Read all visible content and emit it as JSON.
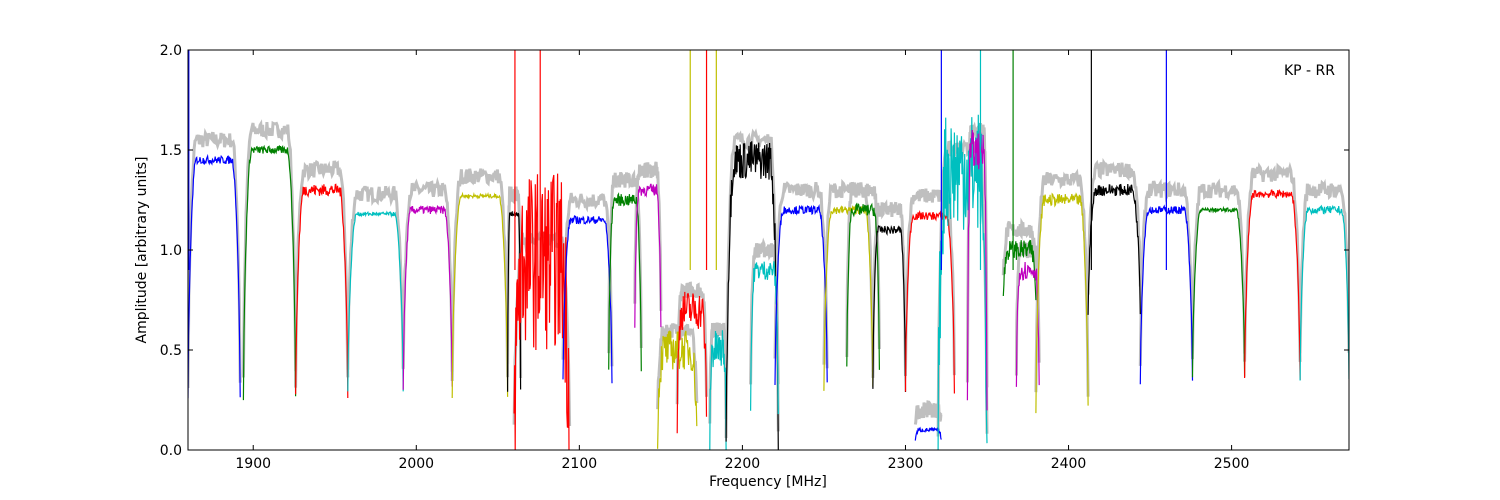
{
  "chart_data": {
    "type": "line",
    "title": "",
    "xlabel": "Frequency [MHz]",
    "ylabel": "Amplitude [arbitrary units]",
    "annotation": "KP - RR",
    "xlim": [
      1860,
      2572
    ],
    "ylim": [
      0.0,
      2.0
    ],
    "xticks": [
      1900,
      2000,
      2100,
      2200,
      2300,
      2400,
      2500
    ],
    "yticks": [
      0.0,
      0.5,
      1.0,
      1.5,
      2.0
    ],
    "xtick_labels": [
      "1900",
      "2000",
      "2100",
      "2200",
      "2300",
      "2400",
      "2500"
    ],
    "ytick_labels": [
      "0.0",
      "0.5",
      "1.0",
      "1.5",
      "2.0"
    ],
    "grid": false,
    "reference_color": "#bfbfbf",
    "channels": [
      {
        "start": 1860,
        "end": 1892,
        "peak": 1.45,
        "floor": 0.25,
        "color": "#0000ff",
        "noise": 0.02
      },
      {
        "start": 1894,
        "end": 1926,
        "peak": 1.5,
        "floor": 0.26,
        "color": "#008000",
        "noise": 0.02
      },
      {
        "start": 1926,
        "end": 1958,
        "peak": 1.3,
        "floor": 0.25,
        "color": "#ff0000",
        "noise": 0.03
      },
      {
        "start": 1958,
        "end": 1992,
        "peak": 1.18,
        "floor": 0.3,
        "color": "#00bfbf",
        "noise": 0.01
      },
      {
        "start": 1992,
        "end": 2022,
        "peak": 1.2,
        "floor": 0.3,
        "color": "#bf00bf",
        "noise": 0.02
      },
      {
        "start": 2022,
        "end": 2056,
        "peak": 1.27,
        "floor": 0.27,
        "color": "#bfbf00",
        "noise": 0.01
      },
      {
        "start": 2056,
        "end": 2064,
        "peak": 1.18,
        "floor": 0.3,
        "color": "#000000",
        "noise": 0.01
      },
      {
        "start": 2060,
        "end": 2094,
        "peak": 0.95,
        "floor": 0.0,
        "color": "#ff0000",
        "noise": 0.45
      },
      {
        "start": 2090,
        "end": 2120,
        "peak": 1.15,
        "floor": 0.35,
        "color": "#0000ff",
        "noise": 0.02
      },
      {
        "start": 2118,
        "end": 2138,
        "peak": 1.25,
        "floor": 0.4,
        "color": "#008000",
        "noise": 0.03
      },
      {
        "start": 2134,
        "end": 2150,
        "peak": 1.3,
        "floor": 0.6,
        "color": "#bf00bf",
        "noise": 0.03
      },
      {
        "start": 2148,
        "end": 2172,
        "peak": 0.5,
        "floor": 0.1,
        "color": "#bfbf00",
        "noise": 0.1
      },
      {
        "start": 2160,
        "end": 2178,
        "peak": 0.7,
        "floor": 0.15,
        "color": "#ff0000",
        "noise": 0.1
      },
      {
        "start": 2180,
        "end": 2190,
        "peak": 0.5,
        "floor": 0.05,
        "color": "#00bfbf",
        "noise": 0.1
      },
      {
        "start": 2190,
        "end": 2222,
        "peak": 1.45,
        "floor": 0.0,
        "color": "#000000",
        "noise": 0.1
      },
      {
        "start": 2205,
        "end": 2222,
        "peak": 0.9,
        "floor": 0.2,
        "color": "#00bfbf",
        "noise": 0.05
      },
      {
        "start": 2220,
        "end": 2252,
        "peak": 1.2,
        "floor": 0.33,
        "color": "#0000ff",
        "noise": 0.02
      },
      {
        "start": 2250,
        "end": 2280,
        "peak": 1.2,
        "floor": 0.3,
        "color": "#bfbf00",
        "noise": 0.02
      },
      {
        "start": 2264,
        "end": 2284,
        "peak": 1.2,
        "floor": 0.4,
        "color": "#008000",
        "noise": 0.03
      },
      {
        "start": 2280,
        "end": 2300,
        "peak": 1.1,
        "floor": 0.3,
        "color": "#000000",
        "noise": 0.02
      },
      {
        "start": 2300,
        "end": 2330,
        "peak": 1.17,
        "floor": 0.3,
        "color": "#ff0000",
        "noise": 0.02
      },
      {
        "start": 2306,
        "end": 2322,
        "peak": 0.1,
        "floor": 0.05,
        "color": "#0000ff",
        "noise": 0.01
      },
      {
        "start": 2320,
        "end": 2350,
        "peak": 1.4,
        "floor": 0.0,
        "color": "#00bfbf",
        "noise": 0.3
      },
      {
        "start": 2338,
        "end": 2350,
        "peak": 1.5,
        "floor": 0.2,
        "color": "#bf00bf",
        "noise": 0.1
      },
      {
        "start": 2360,
        "end": 2380,
        "peak": 1.0,
        "floor": 0.75,
        "color": "#008000",
        "noise": 0.05
      },
      {
        "start": 2368,
        "end": 2382,
        "peak": 0.9,
        "floor": 0.3,
        "color": "#bf00bf",
        "noise": 0.05
      },
      {
        "start": 2380,
        "end": 2412,
        "peak": 1.25,
        "floor": 0.2,
        "color": "#bfbf00",
        "noise": 0.03
      },
      {
        "start": 2412,
        "end": 2444,
        "peak": 1.3,
        "floor": 0.7,
        "color": "#000000",
        "noise": 0.03
      },
      {
        "start": 2444,
        "end": 2476,
        "peak": 1.2,
        "floor": 0.34,
        "color": "#0000ff",
        "noise": 0.02
      },
      {
        "start": 2476,
        "end": 2508,
        "peak": 1.2,
        "floor": 0.36,
        "color": "#008000",
        "noise": 0.01
      },
      {
        "start": 2508,
        "end": 2542,
        "peak": 1.28,
        "floor": 0.35,
        "color": "#ff0000",
        "noise": 0.02
      },
      {
        "start": 2542,
        "end": 2572,
        "peak": 1.2,
        "floor": 0.35,
        "color": "#00bfbf",
        "noise": 0.02
      }
    ],
    "spikes": [
      {
        "x": 1860.5,
        "y": 2.0,
        "color": "#0000ff"
      },
      {
        "x": 2060.5,
        "y": 2.0,
        "color": "#ff0000"
      },
      {
        "x": 2076,
        "y": 2.0,
        "color": "#ff0000"
      },
      {
        "x": 2168,
        "y": 2.0,
        "color": "#bfbf00"
      },
      {
        "x": 2178,
        "y": 2.0,
        "color": "#ff0000"
      },
      {
        "x": 2184,
        "y": 2.0,
        "color": "#bfbf00"
      },
      {
        "x": 2322,
        "y": 2.0,
        "color": "#0000ff"
      },
      {
        "x": 2346,
        "y": 2.0,
        "color": "#00bfbf"
      },
      {
        "x": 2366,
        "y": 2.0,
        "color": "#008000"
      },
      {
        "x": 2414,
        "y": 2.0,
        "color": "#000000"
      },
      {
        "x": 2460,
        "y": 2.0,
        "color": "#0000ff"
      }
    ]
  }
}
